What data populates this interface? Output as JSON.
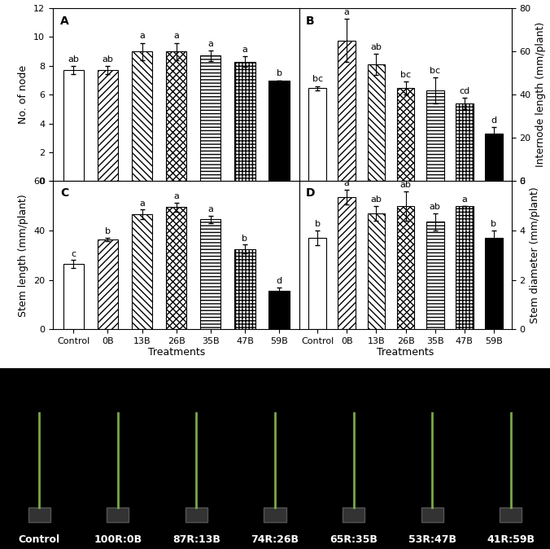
{
  "chart_data": [
    {
      "type": "bar",
      "title": "A",
      "ylabel": "No. of node",
      "categories": [
        "Control",
        "0B",
        "13B",
        "26B",
        "35B",
        "47B",
        "59B"
      ],
      "values": [
        7.7,
        7.7,
        9.0,
        9.0,
        8.7,
        8.3,
        7.0
      ],
      "errors": [
        0.3,
        0.3,
        0.6,
        0.6,
        0.35,
        0.35,
        0.0
      ],
      "letters": [
        "ab",
        "ab",
        "a",
        "a",
        "a",
        "a",
        "b"
      ],
      "colors": [
        "white",
        "white",
        "white",
        "white",
        "white",
        "white",
        "black"
      ],
      "ylim": [
        0,
        12
      ],
      "yticks": [
        0,
        2,
        4,
        6,
        8,
        10,
        12
      ],
      "tick_labels": "y"
    },
    {
      "type": "bar",
      "title": "B",
      "ylabel": "Internode length (mm/plant)",
      "categories": [
        "Control",
        "0B",
        "13B",
        "26B",
        "35B",
        "47B",
        "59B"
      ],
      "values": [
        43,
        65,
        54,
        43,
        42,
        36,
        22
      ],
      "errors": [
        1,
        10,
        5,
        3,
        6,
        2.5,
        3
      ],
      "letters": [
        "bc",
        "a",
        "ab",
        "bc",
        "bc",
        "cd",
        "d"
      ],
      "colors": [
        "white",
        "white",
        "white",
        "white",
        "white",
        "white",
        "black"
      ],
      "ylim": [
        0,
        80
      ],
      "yticks": [
        0,
        20,
        40,
        60,
        80
      ],
      "tick_labels": "y"
    },
    {
      "type": "bar",
      "title": "C",
      "ylabel": "Stem length (mm/plant)",
      "xlabel": "Treatments",
      "categories": [
        "Control",
        "0B",
        "13B",
        "26B",
        "35B",
        "47B",
        "59B"
      ],
      "values": [
        26.5,
        36.5,
        46.5,
        49.5,
        44.5,
        32.5,
        15.5
      ],
      "errors": [
        1.5,
        0.7,
        2.0,
        1.8,
        1.5,
        1.8,
        1.5
      ],
      "letters": [
        "c",
        "b",
        "a",
        "a",
        "a",
        "b",
        "d"
      ],
      "colors": [
        "white",
        "white",
        "white",
        "white",
        "white",
        "white",
        "black"
      ],
      "ylim": [
        0,
        60
      ],
      "yticks": [
        0,
        20,
        40,
        60
      ]
    },
    {
      "type": "bar",
      "title": "D",
      "ylabel": "Stem diameter (mm/plant)",
      "xlabel": "Treatments",
      "categories": [
        "Control",
        "0B",
        "13B",
        "26B",
        "35B",
        "47B",
        "59B"
      ],
      "values": [
        3.7,
        5.35,
        4.7,
        5.0,
        4.35,
        5.0,
        3.7
      ],
      "errors": [
        0.3,
        0.3,
        0.3,
        0.6,
        0.35,
        0.0,
        0.3
      ],
      "letters": [
        "b",
        "a",
        "ab",
        "ab",
        "ab",
        "a",
        "b"
      ],
      "colors": [
        "white",
        "white",
        "white",
        "white",
        "white",
        "white",
        "black"
      ],
      "ylim": [
        0,
        6
      ],
      "yticks": [
        0,
        2,
        4,
        6
      ]
    }
  ],
  "photo_labels": [
    "Control",
    "100R:0B",
    "87R:13B",
    "74R:26B",
    "65R:35B",
    "53R:47B",
    "41R:59B"
  ]
}
